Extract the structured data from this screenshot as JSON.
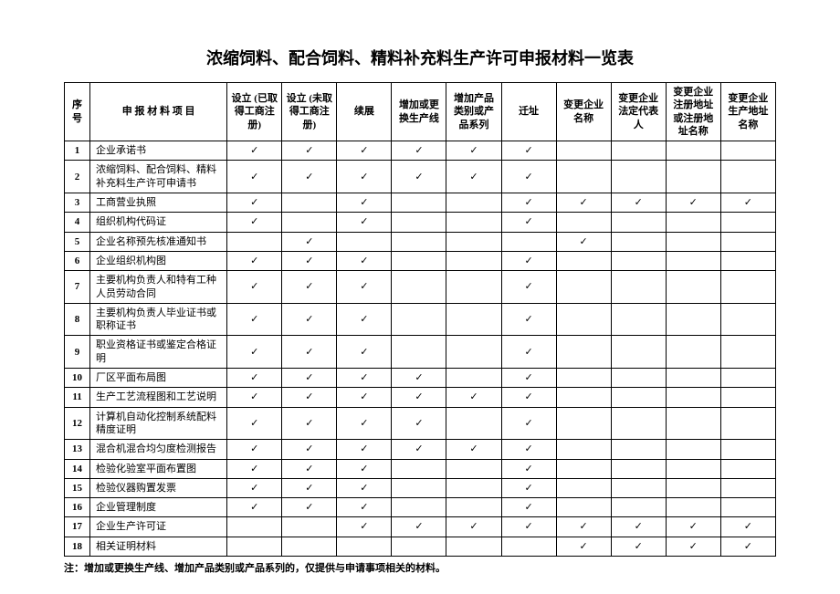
{
  "title": "浓缩饲料、配合饲料、精料补充料生产许可申报材料一览表",
  "note": "注：增加或更换生产线、增加产品类别或产品系列的，仅提供与申请事项相关的材料。",
  "checkmark": "✓",
  "headers": {
    "seq": "序号",
    "item": "申 报 材 料 项 目",
    "cols": [
      "设立\n(已取得工商注册)",
      "设立\n(未取得工商注册)",
      "续展",
      "增加或更换生产线",
      "增加产品类别或产品系列",
      "迁址",
      "变更企业名称",
      "变更企业法定代表人",
      "变更企业注册地址或注册地址名称",
      "变更企业生产地址名称"
    ]
  },
  "rows": [
    {
      "n": "1",
      "item": "企业承诺书",
      "c": [
        1,
        1,
        1,
        1,
        1,
        1,
        0,
        0,
        0,
        0
      ]
    },
    {
      "n": "2",
      "item": "浓缩饲料、配合饲料、精料补充料生产许可申请书",
      "c": [
        1,
        1,
        1,
        1,
        1,
        1,
        0,
        0,
        0,
        0
      ]
    },
    {
      "n": "3",
      "item": "工商营业执照",
      "c": [
        1,
        0,
        1,
        0,
        0,
        1,
        1,
        1,
        1,
        1
      ]
    },
    {
      "n": "4",
      "item": "组织机构代码证",
      "c": [
        1,
        0,
        1,
        0,
        0,
        1,
        0,
        0,
        0,
        0
      ]
    },
    {
      "n": "5",
      "item": "企业名称预先核准通知书",
      "c": [
        0,
        1,
        0,
        0,
        0,
        0,
        1,
        0,
        0,
        0
      ]
    },
    {
      "n": "6",
      "item": "企业组织机构图",
      "c": [
        1,
        1,
        1,
        0,
        0,
        1,
        0,
        0,
        0,
        0
      ]
    },
    {
      "n": "7",
      "item": "主要机构负责人和特有工种人员劳动合同",
      "c": [
        1,
        1,
        1,
        0,
        0,
        1,
        0,
        0,
        0,
        0
      ]
    },
    {
      "n": "8",
      "item": "主要机构负责人毕业证书或职称证书",
      "c": [
        1,
        1,
        1,
        0,
        0,
        1,
        0,
        0,
        0,
        0
      ]
    },
    {
      "n": "9",
      "item": "职业资格证书或鉴定合格证明",
      "c": [
        1,
        1,
        1,
        0,
        0,
        1,
        0,
        0,
        0,
        0
      ]
    },
    {
      "n": "10",
      "item": "厂区平面布局图",
      "c": [
        1,
        1,
        1,
        1,
        0,
        1,
        0,
        0,
        0,
        0
      ]
    },
    {
      "n": "11",
      "item": "生产工艺流程图和工艺说明",
      "c": [
        1,
        1,
        1,
        1,
        1,
        1,
        0,
        0,
        0,
        0
      ]
    },
    {
      "n": "12",
      "item": "计算机自动化控制系统配料精度证明",
      "c": [
        1,
        1,
        1,
        1,
        0,
        1,
        0,
        0,
        0,
        0
      ]
    },
    {
      "n": "13",
      "item": "混合机混合均匀度检测报告",
      "c": [
        1,
        1,
        1,
        1,
        1,
        1,
        0,
        0,
        0,
        0
      ]
    },
    {
      "n": "14",
      "item": "检验化验室平面布置图",
      "c": [
        1,
        1,
        1,
        0,
        0,
        1,
        0,
        0,
        0,
        0
      ]
    },
    {
      "n": "15",
      "item": "检验仪器购置发票",
      "c": [
        1,
        1,
        1,
        0,
        0,
        1,
        0,
        0,
        0,
        0
      ]
    },
    {
      "n": "16",
      "item": "企业管理制度",
      "c": [
        1,
        1,
        1,
        0,
        0,
        1,
        0,
        0,
        0,
        0
      ]
    },
    {
      "n": "17",
      "item": "企业生产许可证",
      "c": [
        0,
        0,
        1,
        1,
        1,
        1,
        1,
        1,
        1,
        1
      ]
    },
    {
      "n": "18",
      "item": "相关证明材料",
      "c": [
        0,
        0,
        0,
        0,
        0,
        0,
        1,
        1,
        1,
        1
      ]
    }
  ]
}
